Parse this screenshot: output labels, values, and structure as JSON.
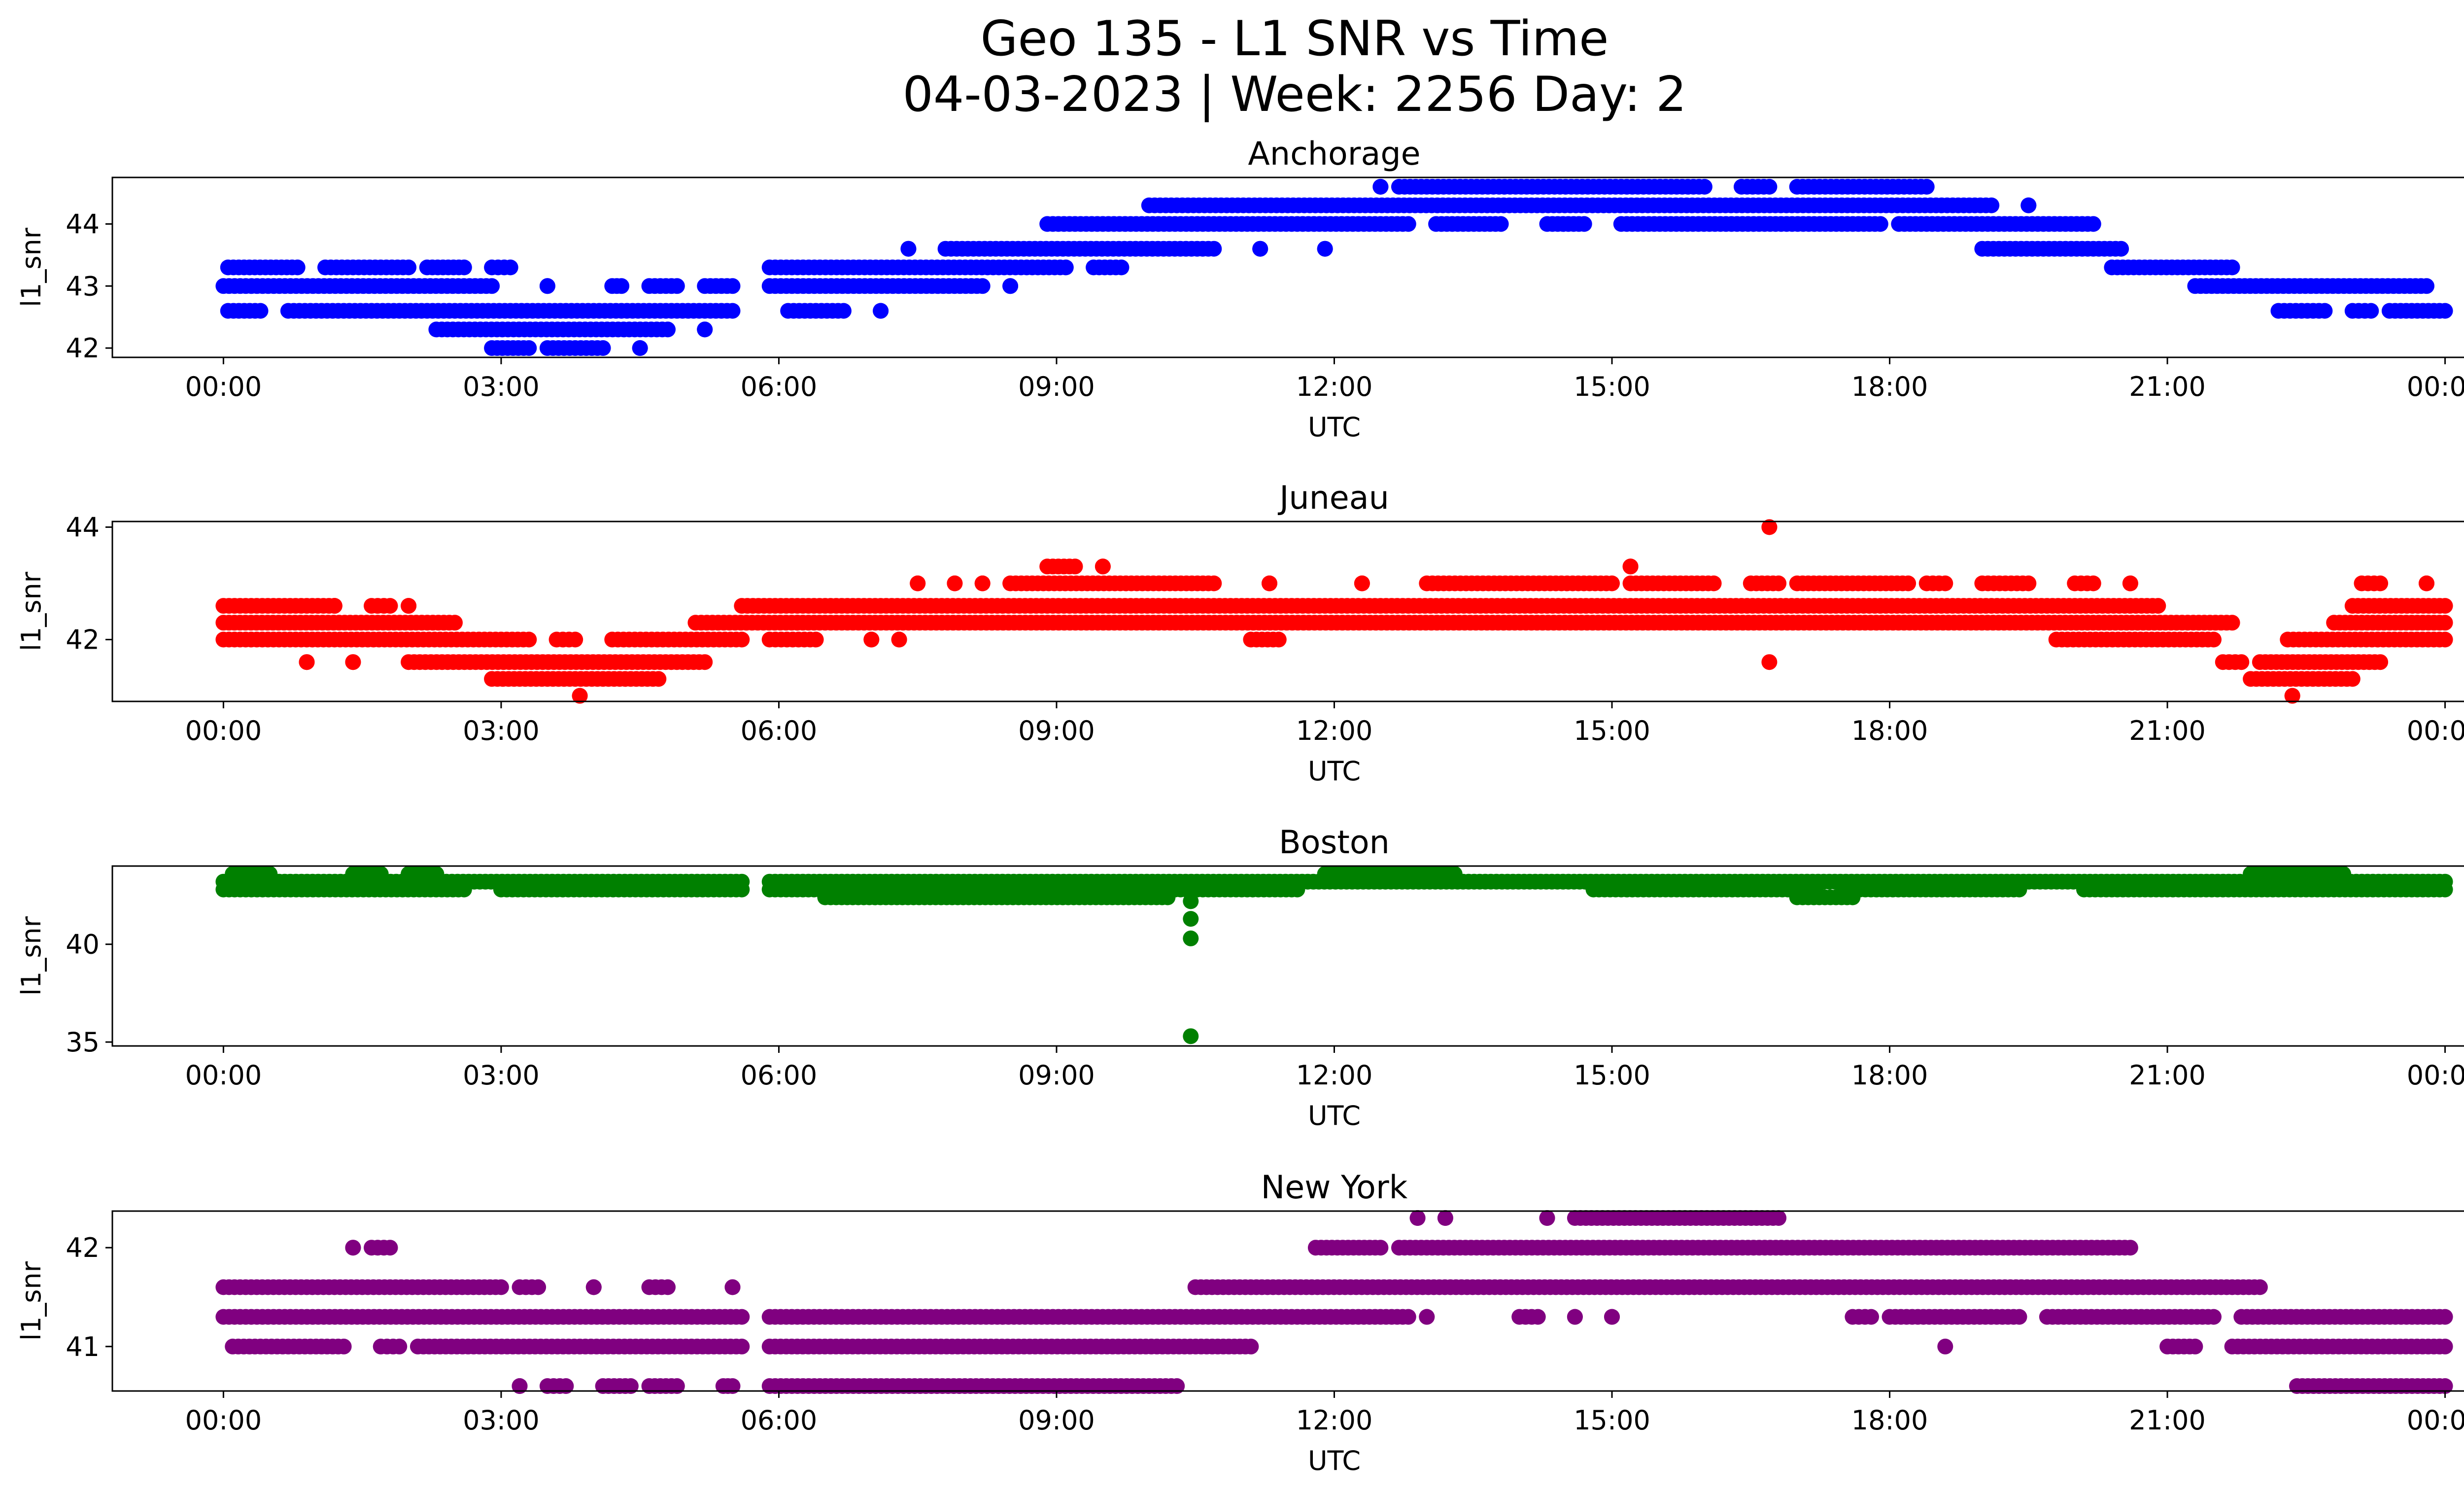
{
  "chart_data": {
    "type": "scatter",
    "title_line1": "Geo 135 - L1 SNR vs Time",
    "title_line2": "04-03-2023 | Week: 2256 Day: 2",
    "xlabel": "UTC",
    "ylabel": "l1_snr",
    "x_ticks": [
      "00:00",
      "03:00",
      "06:00",
      "09:00",
      "12:00",
      "15:00",
      "18:00",
      "21:00",
      "00:00"
    ],
    "x_tick_hours": [
      0,
      3,
      6,
      9,
      12,
      15,
      18,
      21,
      24
    ],
    "xlim_hours": [
      -1.2,
      25.2
    ],
    "grid": false,
    "legend": "none",
    "panels": [
      {
        "name": "Anchorage",
        "color": "#0000ff",
        "ylim": [
          41.85,
          44.75
        ],
        "yticks": [
          42,
          43,
          44
        ],
        "bands": [
          {
            "y": 42.0,
            "segments": [
              [
                2.9,
                3.3
              ],
              [
                3.5,
                4.1
              ],
              [
                4.5,
                4.5
              ]
            ]
          },
          {
            "y": 42.3,
            "segments": [
              [
                2.3,
                4.8
              ],
              [
                5.2,
                5.2
              ]
            ]
          },
          {
            "y": 42.6,
            "segments": [
              [
                0.05,
                0.4
              ],
              [
                0.7,
                5.5
              ],
              [
                6.1,
                6.7
              ],
              [
                7.1,
                7.1
              ],
              [
                22.2,
                22.7
              ],
              [
                23.0,
                23.2
              ],
              [
                23.4,
                24.0
              ]
            ]
          },
          {
            "y": 43.0,
            "segments": [
              [
                0.0,
                2.9
              ],
              [
                3.5,
                3.5
              ],
              [
                4.2,
                4.3
              ],
              [
                4.6,
                4.9
              ],
              [
                5.2,
                5.5
              ],
              [
                5.9,
                8.2
              ],
              [
                8.5,
                8.5
              ],
              [
                21.3,
                23.8
              ]
            ]
          },
          {
            "y": 43.3,
            "segments": [
              [
                0.05,
                0.8
              ],
              [
                1.1,
                2.0
              ],
              [
                2.2,
                2.6
              ],
              [
                2.9,
                3.1
              ],
              [
                5.9,
                9.1
              ],
              [
                9.4,
                9.7
              ],
              [
                20.4,
                21.7
              ]
            ]
          },
          {
            "y": 43.6,
            "segments": [
              [
                7.4,
                7.4
              ],
              [
                7.8,
                10.7
              ],
              [
                11.2,
                11.2
              ],
              [
                11.9,
                11.9
              ],
              [
                19.0,
                20.5
              ]
            ]
          },
          {
            "y": 44.0,
            "segments": [
              [
                8.9,
                12.8
              ],
              [
                13.1,
                13.8
              ],
              [
                14.3,
                14.7
              ],
              [
                15.1,
                17.9
              ],
              [
                18.1,
                20.2
              ]
            ]
          },
          {
            "y": 44.3,
            "segments": [
              [
                10.0,
                19.1
              ],
              [
                19.5,
                19.5
              ]
            ]
          },
          {
            "y": 44.6,
            "segments": [
              [
                12.5,
                12.5
              ],
              [
                12.7,
                16.0
              ],
              [
                16.4,
                16.7
              ],
              [
                17.0,
                18.4
              ]
            ]
          }
        ],
        "outliers": []
      },
      {
        "name": "Juneau",
        "color": "#ff0000",
        "ylim": [
          40.9,
          44.1
        ],
        "yticks": [
          42,
          44
        ],
        "bands": [
          {
            "y": 41.0,
            "segments": [
              [
                3.85,
                3.85
              ],
              [
                22.35,
                22.35
              ]
            ]
          },
          {
            "y": 41.3,
            "segments": [
              [
                2.9,
                4.7
              ],
              [
                21.9,
                23.0
              ]
            ]
          },
          {
            "y": 41.6,
            "segments": [
              [
                0.9,
                0.9
              ],
              [
                1.4,
                1.4
              ],
              [
                2.0,
                5.2
              ],
              [
                21.6,
                21.8
              ],
              [
                22.0,
                23.3
              ]
            ]
          },
          {
            "y": 42.0,
            "segments": [
              [
                0.0,
                3.3
              ],
              [
                3.6,
                3.8
              ],
              [
                4.2,
                5.6
              ],
              [
                5.9,
                6.4
              ],
              [
                7.0,
                7.0
              ],
              [
                7.3,
                7.3
              ],
              [
                11.1,
                11.4
              ],
              [
                19.8,
                21.5
              ],
              [
                22.3,
                24.0
              ]
            ]
          },
          {
            "y": 42.3,
            "segments": [
              [
                0.0,
                2.5
              ],
              [
                5.1,
                6.2
              ],
              [
                6.2,
                21.7
              ],
              [
                22.8,
                24.0
              ]
            ]
          },
          {
            "y": 42.6,
            "segments": [
              [
                0.0,
                1.2
              ],
              [
                1.2,
                1.2
              ],
              [
                1.6,
                1.8
              ],
              [
                2.0,
                2.0
              ],
              [
                5.6,
                20.9
              ],
              [
                23.0,
                24.0
              ]
            ]
          },
          {
            "y": 43.0,
            "segments": [
              [
                7.5,
                7.5
              ],
              [
                7.9,
                7.9
              ],
              [
                8.2,
                8.2
              ],
              [
                8.5,
                10.7
              ],
              [
                11.3,
                11.3
              ],
              [
                12.3,
                12.3
              ],
              [
                13.0,
                15.0
              ],
              [
                15.2,
                16.1
              ],
              [
                16.5,
                16.8
              ],
              [
                17.0,
                18.2
              ],
              [
                18.4,
                18.6
              ],
              [
                19.0,
                19.5
              ],
              [
                20.0,
                20.2
              ],
              [
                20.6,
                20.6
              ],
              [
                23.1,
                23.3
              ],
              [
                23.8,
                23.8
              ]
            ]
          },
          {
            "y": 43.3,
            "segments": [
              [
                8.9,
                9.2
              ],
              [
                9.5,
                9.5
              ],
              [
                15.2,
                15.2
              ]
            ]
          },
          {
            "y": 44.0,
            "segments": [
              [
                16.7,
                16.7
              ]
            ]
          }
        ],
        "outliers": [
          {
            "x": 16.7,
            "y": 41.6
          }
        ]
      },
      {
        "name": "Boston",
        "color": "#008000",
        "ylim": [
          34.8,
          44.0
        ],
        "yticks": [
          35,
          40
        ],
        "bands": [
          {
            "y": 42.4,
            "segments": [
              [
                6.5,
                10.2
              ],
              [
                17.0,
                17.6
              ]
            ]
          },
          {
            "y": 42.8,
            "segments": [
              [
                0.0,
                2.6
              ],
              [
                3.0,
                5.6
              ],
              [
                5.9,
                11.6
              ],
              [
                14.8,
                17.2
              ],
              [
                17.5,
                19.4
              ],
              [
                20.1,
                24.0
              ]
            ]
          },
          {
            "y": 43.2,
            "segments": [
              [
                0.0,
                5.6
              ],
              [
                5.9,
                24.0
              ]
            ]
          },
          {
            "y": 43.6,
            "segments": [
              [
                0.1,
                0.5
              ],
              [
                1.4,
                1.7
              ],
              [
                2.0,
                2.3
              ],
              [
                11.9,
                13.3
              ],
              [
                21.9,
                22.9
              ]
            ]
          }
        ],
        "outliers": [
          {
            "x": 10.45,
            "y": 42.2
          },
          {
            "x": 10.45,
            "y": 41.3
          },
          {
            "x": 10.45,
            "y": 40.3
          },
          {
            "x": 10.45,
            "y": 35.3
          }
        ]
      },
      {
        "name": "New York",
        "color": "#800080",
        "ylim": [
          40.55,
          42.37
        ],
        "yticks": [
          41,
          42
        ],
        "bands": [
          {
            "y": 40.6,
            "segments": [
              [
                3.2,
                3.2
              ],
              [
                3.5,
                3.7
              ],
              [
                4.1,
                4.4
              ],
              [
                4.6,
                4.9
              ],
              [
                5.4,
                5.5
              ],
              [
                5.9,
                10.3
              ],
              [
                22.4,
                24.0
              ]
            ]
          },
          {
            "y": 41.0,
            "segments": [
              [
                0.1,
                1.3
              ],
              [
                1.7,
                1.9
              ],
              [
                2.1,
                5.6
              ],
              [
                5.9,
                11.1
              ],
              [
                21.0,
                21.3
              ],
              [
                21.7,
                24.0
              ]
            ]
          },
          {
            "y": 41.3,
            "segments": [
              [
                0.0,
                5.6
              ],
              [
                5.9,
                12.8
              ],
              [
                13.0,
                13.0
              ],
              [
                14.0,
                14.2
              ],
              [
                14.6,
                14.6
              ],
              [
                15.0,
                15.0
              ],
              [
                17.6,
                17.8
              ],
              [
                18.0,
                19.4
              ],
              [
                19.7,
                21.5
              ],
              [
                21.8,
                24.0
              ]
            ]
          },
          {
            "y": 41.6,
            "segments": [
              [
                0.0,
                3.0
              ],
              [
                3.2,
                3.4
              ],
              [
                4.0,
                4.0
              ],
              [
                4.6,
                4.8
              ],
              [
                5.5,
                5.5
              ],
              [
                10.5,
                22.0
              ]
            ]
          },
          {
            "y": 42.0,
            "segments": [
              [
                1.4,
                1.4
              ],
              [
                1.6,
                1.8
              ],
              [
                11.8,
                12.5
              ],
              [
                12.7,
                20.6
              ]
            ]
          },
          {
            "y": 42.3,
            "segments": [
              [
                12.9,
                12.9
              ],
              [
                13.2,
                13.2
              ],
              [
                14.3,
                14.3
              ],
              [
                14.6,
                16.8
              ]
            ]
          }
        ],
        "outliers": [
          {
            "x": 18.6,
            "y": 41.0
          }
        ]
      }
    ]
  }
}
